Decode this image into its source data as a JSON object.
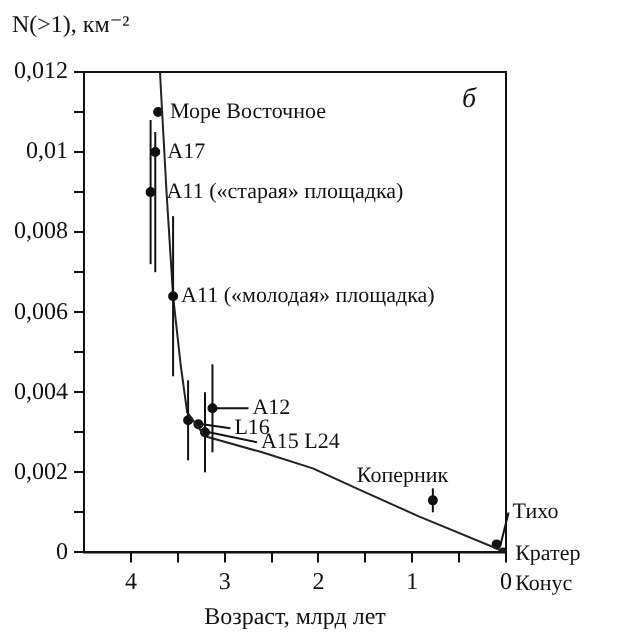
{
  "chart_data": {
    "type": "scatter",
    "xlabel": "Возраст, млрд лет",
    "ylabel": "N(>1), км⁻²",
    "xlim": [
      4.5,
      0
    ],
    "xticks": [
      4,
      {
        "value": 3.5,
        "label": null
      },
      3,
      {
        "value": 2.5,
        "label": null
      },
      2,
      {
        "value": 1.5,
        "label": null
      },
      1,
      {
        "value": 0.5,
        "label": null
      },
      0
    ],
    "ylim": [
      0,
      0.012
    ],
    "yticks": [
      {
        "value": 0,
        "label": "0"
      },
      {
        "value": 0.001,
        "label": null
      },
      {
        "value": 0.002,
        "label": "0,002"
      },
      {
        "value": 0.003,
        "label": null
      },
      {
        "value": 0.004,
        "label": "0,004"
      },
      {
        "value": 0.005,
        "label": null
      },
      {
        "value": 0.006,
        "label": "0,006"
      },
      {
        "value": 0.007,
        "label": null
      },
      {
        "value": 0.008,
        "label": "0,008"
      },
      {
        "value": 0.009,
        "label": null
      },
      {
        "value": 0.01,
        "label": "0,01"
      },
      {
        "value": 0.011,
        "label": null
      },
      {
        "value": 0.012,
        "label": "0,012"
      }
    ],
    "series": [
      {
        "type": "line",
        "color": "#222222",
        "marker": "none",
        "x": [
          3.69,
          3.62,
          3.55,
          3.47,
          3.4,
          3.21,
          2.6,
          2.06,
          1.5,
          0.93,
          0
        ],
        "values": [
          0.012,
          0.009,
          0.0064,
          0.0047,
          0.0035,
          0.0029,
          0.0025,
          0.0021,
          0.0015,
          0.0009,
          0
        ]
      },
      {
        "type": "scatter",
        "color": "#111111",
        "marker": "circle",
        "x": [
          3.71,
          3.74,
          3.79,
          3.55,
          3.39,
          3.28,
          3.21,
          3.13,
          0.78,
          0.1,
          0.03
        ],
        "values": [
          0.011,
          0.01,
          0.009,
          0.0064,
          0.0033,
          0.0032,
          0.003,
          0.0036,
          0.0013,
          0.0002,
          0
        ],
        "errors": [
          null,
          [
            0.007,
            0.0105
          ],
          0.0018,
          0.002,
          0.001,
          null,
          0.001,
          0.0011,
          0.0003,
          null,
          null
        ]
      }
    ],
    "annotations": [
      {
        "text": "Море Восточное",
        "x": 3.71,
        "y": 0.011
      },
      {
        "text": "A17",
        "x": 3.74,
        "y": 0.01
      },
      {
        "text": "A11 («старая» площадка)",
        "x": 3.79,
        "y": 0.009
      },
      {
        "text": "A11 («молодая» площадка)",
        "x": 3.55,
        "y": 0.0064
      },
      {
        "text": "A12",
        "x": 3.13,
        "y": 0.0036
      },
      {
        "text": "L16",
        "x": 3.28,
        "y": 0.0032
      },
      {
        "text": "A15 L24",
        "x": 3.21,
        "y": 0.003
      },
      {
        "text": "Коперник",
        "x": 0.78,
        "y": 0.0013
      },
      {
        "text": "Тихо",
        "x": 0.1,
        "y": 0.0002
      },
      {
        "text": "Кратер",
        "x": 0.03,
        "y": 0
      },
      {
        "text": "Конус",
        "x": 0.03,
        "y": 0
      },
      "б"
    ]
  }
}
